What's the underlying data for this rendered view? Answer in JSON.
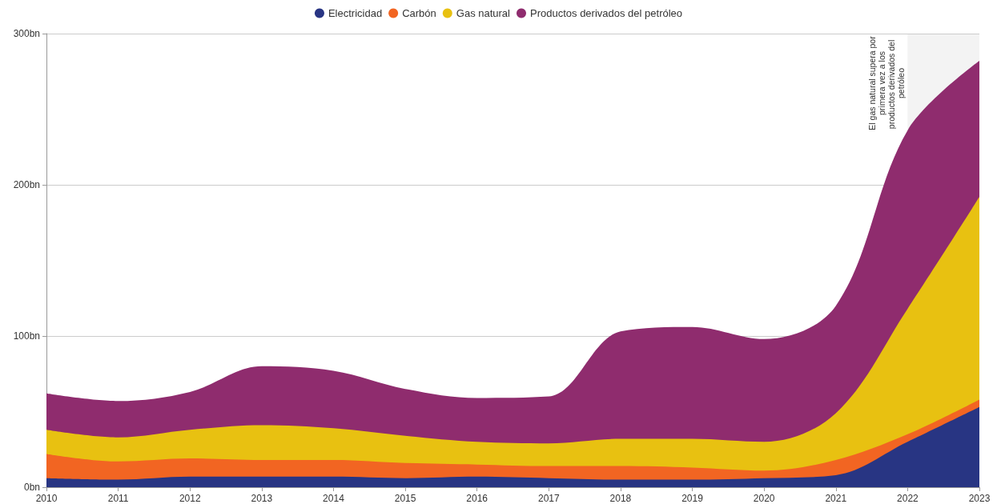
{
  "chart_data": {
    "type": "area",
    "stacked": true,
    "legend": "top",
    "grid": "y",
    "x": [
      2010,
      2011,
      2012,
      2013,
      2014,
      2015,
      2016,
      2017,
      2018,
      2019,
      2020,
      2021,
      2022,
      2023
    ],
    "xlim": [
      2010,
      2023
    ],
    "xticks": [
      2010,
      2011,
      2012,
      2013,
      2014,
      2015,
      2016,
      2017,
      2018,
      2019,
      2020,
      2021,
      2022,
      2023
    ],
    "ylim": [
      0,
      300
    ],
    "yticks": [
      {
        "value": 0,
        "label": "0bn"
      },
      {
        "value": 100,
        "label": "100bn"
      },
      {
        "value": 200,
        "label": "200bn"
      },
      {
        "value": 300,
        "label": "300bn"
      }
    ],
    "series": [
      {
        "name": "Electricidad",
        "color": "#283583",
        "values": [
          6,
          5,
          7,
          7,
          7,
          6,
          7,
          6,
          5,
          5,
          6,
          8,
          30,
          53
        ]
      },
      {
        "name": "Carbón",
        "color": "#f26522",
        "values": [
          16,
          12,
          12,
          11,
          11,
          10,
          8,
          8,
          9,
          8,
          5,
          10,
          5,
          5
        ]
      },
      {
        "name": "Gas natural",
        "color": "#e8c111",
        "values": [
          16,
          16,
          19,
          23,
          21,
          18,
          15,
          15,
          18,
          19,
          19,
          31,
          83,
          134
        ]
      },
      {
        "name": "Productos derivados del petróleo",
        "color": "#8f2c6e",
        "values": [
          24,
          24,
          25,
          39,
          38,
          31,
          29,
          31,
          71,
          74,
          68,
          71,
          118,
          90
        ]
      }
    ],
    "bands": [
      {
        "axis": "x",
        "from": 2022,
        "to": 2023,
        "color": "#f3f3f3",
        "label": "El gas natural supera por primera vez a los productos derivados del petróleo"
      }
    ]
  }
}
